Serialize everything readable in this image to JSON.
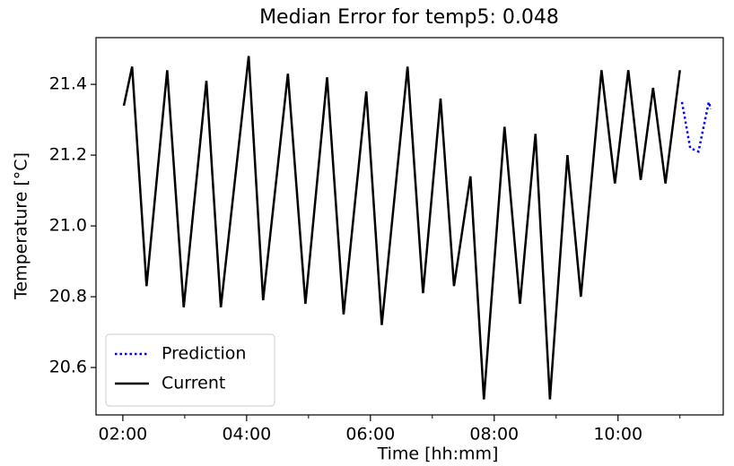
{
  "chart_data": {
    "type": "line",
    "title": "Median Error for temp5: 0.048",
    "xlabel": "Time [hh:mm]",
    "ylabel": "Temperature [°C]",
    "series": [
      {
        "name": "Prediction",
        "color": "#0000ff",
        "linestyle": "dotted",
        "x": [
          "11:02",
          "11:10",
          "11:18",
          "11:28",
          "11:30"
        ],
        "values": [
          21.35,
          21.22,
          21.21,
          21.35,
          21.33
        ]
      },
      {
        "name": "Current",
        "color": "#000000",
        "linestyle": "solid",
        "x": [
          "02:01",
          "02:09",
          "02:23",
          "02:43",
          "02:59",
          "03:21",
          "03:35",
          "04:02",
          "04:16",
          "04:40",
          "04:57",
          "05:18",
          "05:34",
          "05:56",
          "06:11",
          "06:36",
          "06:51",
          "07:08",
          "07:21",
          "07:37",
          "07:50",
          "08:10",
          "08:25",
          "08:40",
          "08:54",
          "09:11",
          "09:24",
          "09:44",
          "09:57",
          "10:10",
          "10:22",
          "10:34",
          "10:46",
          "11:00"
        ],
        "values": [
          21.34,
          21.45,
          20.83,
          21.44,
          20.77,
          21.41,
          20.77,
          21.48,
          20.79,
          21.43,
          20.78,
          21.42,
          20.75,
          21.38,
          20.72,
          21.45,
          20.81,
          21.36,
          20.83,
          21.14,
          20.51,
          21.28,
          20.78,
          21.26,
          20.51,
          21.2,
          20.8,
          21.44,
          21.12,
          21.44,
          21.13,
          21.39,
          21.12,
          21.44
        ]
      }
    ],
    "xlim": [
      "01:34",
      "11:42"
    ],
    "xticks": [
      "02:00",
      "04:00",
      "06:00",
      "08:00",
      "10:00"
    ],
    "xminorticks": [
      "03:00",
      "05:00",
      "07:00",
      "09:00",
      "11:00"
    ],
    "ylim": [
      20.466,
      21.532
    ],
    "yticks": [
      20.6,
      20.8,
      {
        "value": 21,
        "label": "21.0"
      },
      21.2,
      21.4
    ],
    "legend": "lower left",
    "grid": false
  }
}
